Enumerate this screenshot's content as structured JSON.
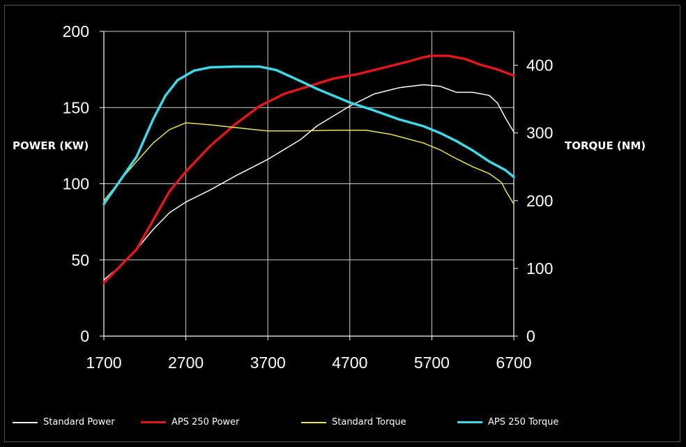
{
  "chart_data": {
    "type": "line",
    "xlabel": "",
    "ylabel": "POWER (KW)",
    "y2label": "TORQUE (NM)",
    "xlim": [
      1700,
      6700
    ],
    "ylim": [
      0,
      200
    ],
    "y2lim": [
      0,
      450
    ],
    "xticks": [
      "1700",
      "2700",
      "3700",
      "4700",
      "5700",
      "6700"
    ],
    "yticks": [
      "0",
      "50",
      "100",
      "150",
      "200"
    ],
    "y2ticks": [
      "0",
      "100",
      "200",
      "300",
      "400"
    ],
    "grid": true,
    "legend_position": "bottom",
    "series": [
      {
        "name": "Standard Power",
        "axis": "left",
        "color": "#ffffff",
        "x": [
          1700,
          1900,
          2100,
          2300,
          2500,
          2700,
          3000,
          3300,
          3700,
          4100,
          4300,
          4700,
          5000,
          5300,
          5600,
          5800,
          6000,
          6200,
          6400,
          6500,
          6600,
          6700
        ],
        "y": [
          37,
          46,
          57,
          70,
          81,
          88,
          96,
          105,
          116,
          129,
          138,
          151,
          159,
          163,
          165,
          164,
          160,
          160,
          158,
          153,
          143,
          134
        ]
      },
      {
        "name": "APS 250 Power",
        "axis": "left",
        "color": "#e0171b",
        "x": [
          1700,
          1900,
          2100,
          2300,
          2500,
          2700,
          3000,
          3300,
          3600,
          3900,
          4200,
          4500,
          4800,
          5100,
          5400,
          5600,
          5700,
          5900,
          6100,
          6300,
          6500,
          6700
        ],
        "y": [
          35,
          46,
          57,
          76,
          95,
          108,
          125,
          139,
          151,
          159,
          164,
          169,
          172,
          176,
          180,
          183,
          184,
          184,
          182,
          178,
          175,
          171
        ]
      },
      {
        "name": "Standard Torque",
        "axis": "right",
        "color": "#e8e454",
        "x": [
          1700,
          1900,
          2100,
          2300,
          2500,
          2700,
          3000,
          3300,
          3700,
          4100,
          4500,
          4900,
          5200,
          5600,
          5800,
          6000,
          6200,
          6400,
          6550,
          6600,
          6700
        ],
        "y": [
          200,
          230,
          258,
          285,
          305,
          315,
          312,
          308,
          303,
          303,
          304,
          304,
          298,
          285,
          275,
          262,
          250,
          240,
          227,
          215,
          195
        ]
      },
      {
        "name": "APS 250 Torque",
        "axis": "right",
        "color": "#3fd8e6",
        "x": [
          1700,
          1900,
          2100,
          2300,
          2450,
          2600,
          2800,
          3000,
          3300,
          3600,
          3800,
          4000,
          4300,
          4700,
          5000,
          5300,
          5600,
          5800,
          6000,
          6200,
          6400,
          6600,
          6700
        ],
        "y": [
          195,
          230,
          265,
          320,
          355,
          378,
          392,
          397,
          398,
          398,
          393,
          382,
          365,
          345,
          333,
          320,
          310,
          300,
          288,
          274,
          258,
          245,
          235
        ]
      }
    ]
  }
}
